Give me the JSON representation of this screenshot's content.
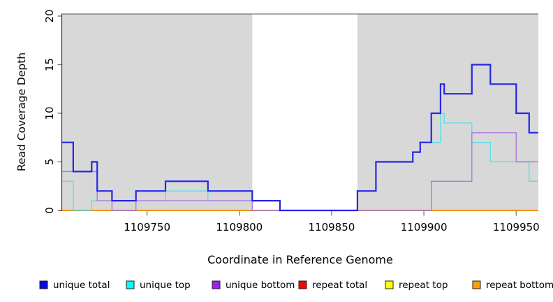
{
  "chart_data": {
    "type": "line",
    "subtype": "step-coverage",
    "title": "",
    "xlabel": "Coordinate in Reference Genome",
    "ylabel": "Read Coverage Depth",
    "xlim": [
      1109704,
      1109962
    ],
    "ylim": [
      0,
      20
    ],
    "x_ticks": [
      1109750,
      1109800,
      1109850,
      1109900,
      1109950
    ],
    "y_ticks": [
      0,
      5,
      10,
      15,
      20
    ],
    "grid": false,
    "legend_position": "bottom",
    "shaded_regions": [
      {
        "name": "left-gray-band",
        "x0": 1109704,
        "x1": 1109807,
        "color": "#d8d8d8"
      },
      {
        "name": "right-gray-band",
        "x0": 1109864,
        "x1": 1109962,
        "color": "#d8d8d8"
      }
    ],
    "series": [
      {
        "name": "repeat total",
        "line_color": "#cc0000",
        "width": 1.2,
        "steps": [
          [
            1109704,
            0
          ]
        ]
      },
      {
        "name": "repeat top",
        "line_color": "#e8e800",
        "width": 1.2,
        "steps": [
          [
            1109704,
            0
          ]
        ]
      },
      {
        "name": "repeat bottom",
        "line_color": "#ff9d00",
        "width": 1.6,
        "steps": [
          [
            1109704,
            0
          ]
        ]
      },
      {
        "name": "unique top",
        "line_color": "#55dee6",
        "width": 1.3,
        "steps": [
          [
            1109704,
            3
          ],
          [
            1109710,
            0
          ],
          [
            1109720,
            1
          ],
          [
            1109760,
            2
          ],
          [
            1109783,
            1
          ],
          [
            1109822,
            0
          ],
          [
            1109864,
            2
          ],
          [
            1109874,
            5
          ],
          [
            1109894,
            6
          ],
          [
            1109898,
            7
          ],
          [
            1109909,
            10
          ],
          [
            1109911,
            9
          ],
          [
            1109926,
            7
          ],
          [
            1109936,
            5
          ],
          [
            1109957,
            3
          ]
        ]
      },
      {
        "name": "unique bottom",
        "line_color": "#ad79dc",
        "width": 1.4,
        "steps": [
          [
            1109704,
            4
          ],
          [
            1109723,
            1
          ],
          [
            1109731,
            0
          ],
          [
            1109744,
            1
          ],
          [
            1109807,
            0
          ],
          [
            1109904,
            3
          ],
          [
            1109926,
            8
          ],
          [
            1109950,
            5
          ]
        ]
      },
      {
        "name": "unique total",
        "line_color": "#2626e8",
        "width": 2.2,
        "steps": [
          [
            1109704,
            7
          ],
          [
            1109710,
            4
          ],
          [
            1109720,
            5
          ],
          [
            1109723,
            2
          ],
          [
            1109731,
            1
          ],
          [
            1109744,
            2
          ],
          [
            1109760,
            3
          ],
          [
            1109783,
            2
          ],
          [
            1109807,
            1
          ],
          [
            1109822,
            0
          ],
          [
            1109864,
            2
          ],
          [
            1109874,
            5
          ],
          [
            1109894,
            6
          ],
          [
            1109898,
            7
          ],
          [
            1109904,
            10
          ],
          [
            1109909,
            13
          ],
          [
            1109911,
            12
          ],
          [
            1109926,
            15
          ],
          [
            1109936,
            13
          ],
          [
            1109950,
            10
          ],
          [
            1109957,
            8
          ]
        ]
      }
    ],
    "legend": [
      {
        "label": "unique total",
        "swatch_color": "#0b0bdf"
      },
      {
        "label": "unique top",
        "swatch_color": "#00ffff"
      },
      {
        "label": "unique bottom",
        "swatch_color": "#a020f0"
      },
      {
        "label": "repeat total",
        "swatch_color": "#ff0000"
      },
      {
        "label": "repeat top",
        "swatch_color": "#ffff00"
      },
      {
        "label": "repeat bottom",
        "swatch_color": "#ffa000"
      }
    ],
    "colors": {
      "background": "#ffffff",
      "band": "#d8d8d8",
      "axis": "#333333",
      "top_border": "#555555",
      "tick": "#777777",
      "text": "#000000"
    }
  }
}
